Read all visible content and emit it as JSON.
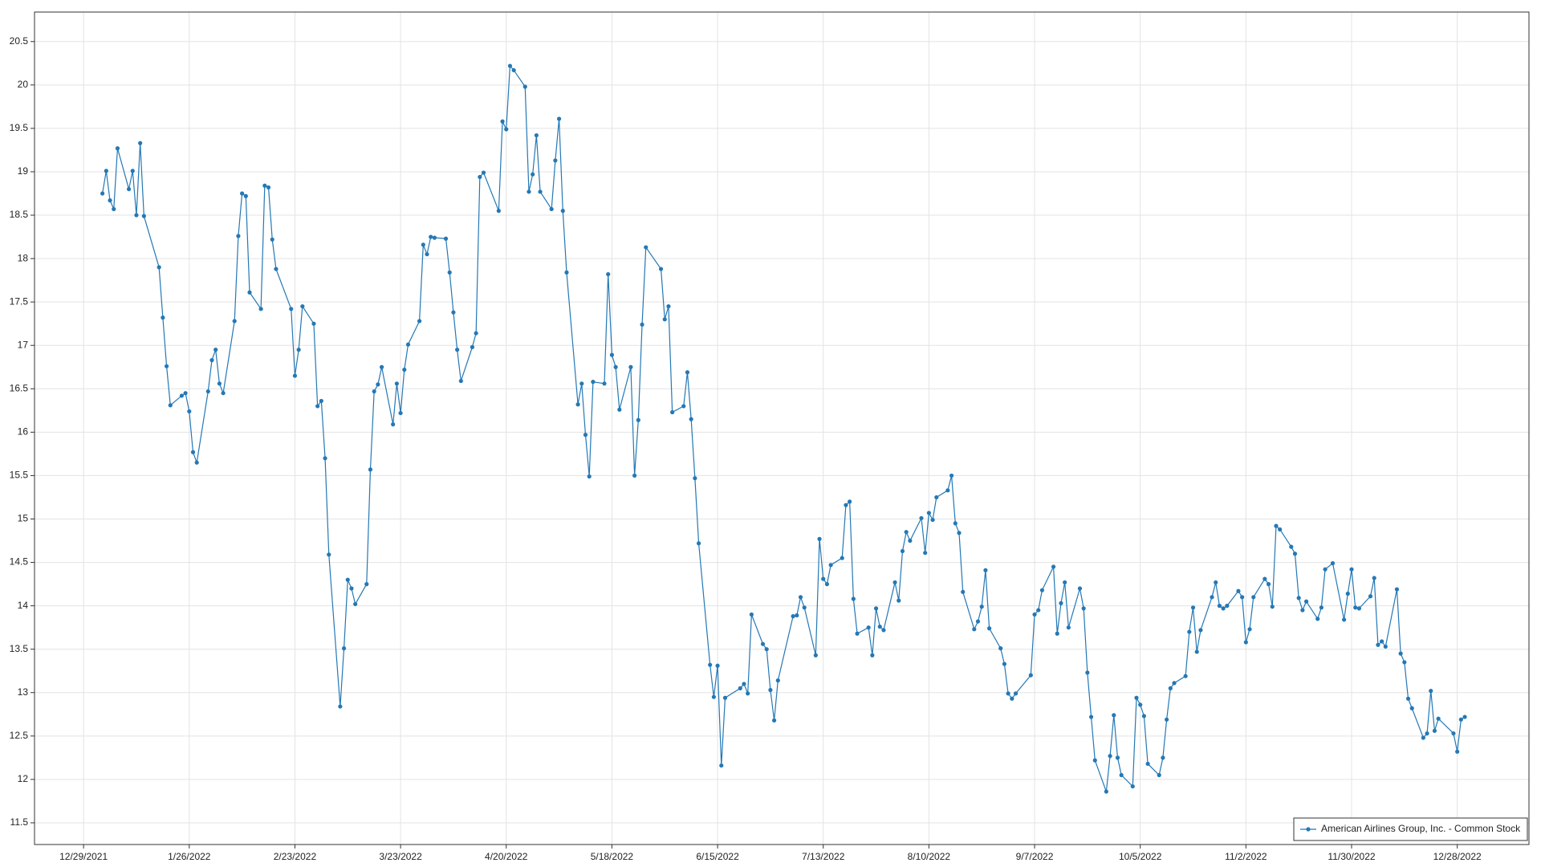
{
  "chart_data": {
    "type": "line",
    "x": [
      "2022-01-03",
      "2022-01-04",
      "2022-01-05",
      "2022-01-06",
      "2022-01-07",
      "2022-01-10",
      "2022-01-11",
      "2022-01-12",
      "2022-01-13",
      "2022-01-14",
      "2022-01-18",
      "2022-01-19",
      "2022-01-20",
      "2022-01-21",
      "2022-01-24",
      "2022-01-25",
      "2022-01-26",
      "2022-01-27",
      "2022-01-28",
      "2022-01-31",
      "2022-02-01",
      "2022-02-02",
      "2022-02-03",
      "2022-02-04",
      "2022-02-07",
      "2022-02-08",
      "2022-02-09",
      "2022-02-10",
      "2022-02-11",
      "2022-02-14",
      "2022-02-15",
      "2022-02-16",
      "2022-02-17",
      "2022-02-18",
      "2022-02-22",
      "2022-02-23",
      "2022-02-24",
      "2022-02-25",
      "2022-02-28",
      "2022-03-01",
      "2022-03-02",
      "2022-03-03",
      "2022-03-04",
      "2022-03-07",
      "2022-03-08",
      "2022-03-09",
      "2022-03-10",
      "2022-03-11",
      "2022-03-14",
      "2022-03-15",
      "2022-03-16",
      "2022-03-17",
      "2022-03-18",
      "2022-03-21",
      "2022-03-22",
      "2022-03-23",
      "2022-03-24",
      "2022-03-25",
      "2022-03-28",
      "2022-03-29",
      "2022-03-30",
      "2022-03-31",
      "2022-04-01",
      "2022-04-04",
      "2022-04-05",
      "2022-04-06",
      "2022-04-07",
      "2022-04-08",
      "2022-04-11",
      "2022-04-12",
      "2022-04-13",
      "2022-04-14",
      "2022-04-18",
      "2022-04-19",
      "2022-04-20",
      "2022-04-21",
      "2022-04-22",
      "2022-04-25",
      "2022-04-26",
      "2022-04-27",
      "2022-04-28",
      "2022-04-29",
      "2022-05-02",
      "2022-05-03",
      "2022-05-04",
      "2022-05-05",
      "2022-05-06",
      "2022-05-09",
      "2022-05-10",
      "2022-05-11",
      "2022-05-12",
      "2022-05-13",
      "2022-05-16",
      "2022-05-17",
      "2022-05-18",
      "2022-05-19",
      "2022-05-20",
      "2022-05-23",
      "2022-05-24",
      "2022-05-25",
      "2022-05-26",
      "2022-05-27",
      "2022-05-31",
      "2022-06-01",
      "2022-06-02",
      "2022-06-03",
      "2022-06-06",
      "2022-06-07",
      "2022-06-08",
      "2022-06-09",
      "2022-06-10",
      "2022-06-13",
      "2022-06-14",
      "2022-06-15",
      "2022-06-16",
      "2022-06-17",
      "2022-06-21",
      "2022-06-22",
      "2022-06-23",
      "2022-06-24",
      "2022-06-27",
      "2022-06-28",
      "2022-06-29",
      "2022-06-30",
      "2022-07-01",
      "2022-07-05",
      "2022-07-06",
      "2022-07-07",
      "2022-07-08",
      "2022-07-11",
      "2022-07-12",
      "2022-07-13",
      "2022-07-14",
      "2022-07-15",
      "2022-07-18",
      "2022-07-19",
      "2022-07-20",
      "2022-07-21",
      "2022-07-22",
      "2022-07-25",
      "2022-07-26",
      "2022-07-27",
      "2022-07-28",
      "2022-07-29",
      "2022-08-01",
      "2022-08-02",
      "2022-08-03",
      "2022-08-04",
      "2022-08-05",
      "2022-08-08",
      "2022-08-09",
      "2022-08-10",
      "2022-08-11",
      "2022-08-12",
      "2022-08-15",
      "2022-08-16",
      "2022-08-17",
      "2022-08-18",
      "2022-08-19",
      "2022-08-22",
      "2022-08-23",
      "2022-08-24",
      "2022-08-25",
      "2022-08-26",
      "2022-08-29",
      "2022-08-30",
      "2022-08-31",
      "2022-09-01",
      "2022-09-02",
      "2022-09-06",
      "2022-09-07",
      "2022-09-08",
      "2022-09-09",
      "2022-09-12",
      "2022-09-13",
      "2022-09-14",
      "2022-09-15",
      "2022-09-16",
      "2022-09-19",
      "2022-09-20",
      "2022-09-21",
      "2022-09-22",
      "2022-09-23",
      "2022-09-26",
      "2022-09-27",
      "2022-09-28",
      "2022-09-29",
      "2022-09-30",
      "2022-10-03",
      "2022-10-04",
      "2022-10-05",
      "2022-10-06",
      "2022-10-07",
      "2022-10-10",
      "2022-10-11",
      "2022-10-12",
      "2022-10-13",
      "2022-10-14",
      "2022-10-17",
      "2022-10-18",
      "2022-10-19",
      "2022-10-20",
      "2022-10-21",
      "2022-10-24",
      "2022-10-25",
      "2022-10-26",
      "2022-10-27",
      "2022-10-28",
      "2022-10-31",
      "2022-11-01",
      "2022-11-02",
      "2022-11-03",
      "2022-11-04",
      "2022-11-07",
      "2022-11-08",
      "2022-11-09",
      "2022-11-10",
      "2022-11-11",
      "2022-11-14",
      "2022-11-15",
      "2022-11-16",
      "2022-11-17",
      "2022-11-18",
      "2022-11-21",
      "2022-11-22",
      "2022-11-23",
      "2022-11-25",
      "2022-11-28",
      "2022-11-29",
      "2022-11-30",
      "2022-12-01",
      "2022-12-02",
      "2022-12-05",
      "2022-12-06",
      "2022-12-07",
      "2022-12-08",
      "2022-12-09",
      "2022-12-12",
      "2022-12-13",
      "2022-12-14",
      "2022-12-15",
      "2022-12-16",
      "2022-12-19",
      "2022-12-20",
      "2022-12-21",
      "2022-12-22",
      "2022-12-23",
      "2022-12-27",
      "2022-12-28",
      "2022-12-29",
      "2022-12-30"
    ],
    "series": [
      {
        "name": "American Airlines Group, Inc. - Common Stock",
        "color": "#2478b5",
        "values": [
          18.75,
          19.01,
          18.67,
          18.57,
          19.27,
          18.8,
          19.01,
          18.5,
          19.33,
          18.49,
          17.9,
          17.32,
          16.76,
          16.31,
          16.42,
          16.45,
          16.24,
          15.77,
          15.65,
          16.47,
          16.83,
          16.95,
          16.56,
          16.45,
          17.28,
          18.26,
          18.75,
          18.72,
          17.61,
          17.42,
          18.84,
          18.82,
          18.22,
          17.88,
          17.42,
          16.65,
          16.95,
          17.45,
          17.25,
          16.3,
          16.36,
          15.7,
          14.59,
          12.84,
          13.51,
          14.3,
          14.2,
          14.02,
          14.25,
          15.57,
          16.47,
          16.55,
          16.75,
          16.09,
          16.56,
          16.22,
          16.72,
          17.01,
          17.28,
          18.16,
          18.05,
          18.25,
          18.24,
          18.23,
          17.84,
          17.38,
          16.95,
          16.59,
          16.98,
          17.14,
          18.94,
          18.99,
          18.55,
          19.58,
          19.49,
          20.22,
          20.17,
          19.98,
          18.77,
          18.97,
          19.42,
          18.77,
          18.57,
          19.13,
          19.61,
          18.55,
          17.84,
          16.32,
          16.56,
          15.97,
          15.49,
          16.58,
          16.56,
          17.82,
          16.89,
          16.75,
          16.26,
          16.75,
          15.5,
          16.14,
          17.24,
          18.13,
          17.88,
          17.3,
          17.45,
          16.23,
          16.3,
          16.69,
          16.15,
          15.47,
          14.72,
          13.32,
          12.95,
          13.31,
          12.16,
          12.94,
          13.05,
          13.1,
          12.99,
          13.9,
          13.56,
          13.5,
          13.03,
          12.68,
          13.14,
          13.88,
          13.89,
          14.1,
          13.98,
          13.43,
          14.77,
          14.31,
          14.25,
          14.47,
          14.55,
          15.16,
          15.2,
          14.08,
          13.68,
          13.75,
          13.43,
          13.97,
          13.76,
          13.72,
          14.27,
          14.06,
          14.63,
          14.85,
          14.75,
          15.01,
          14.61,
          15.07,
          14.99,
          15.25,
          15.33,
          15.5,
          14.95,
          14.84,
          14.16,
          13.73,
          13.82,
          13.99,
          14.41,
          13.74,
          13.51,
          13.33,
          12.99,
          12.93,
          12.99,
          13.2,
          13.9,
          13.95,
          14.18,
          14.45,
          13.68,
          14.03,
          14.27,
          13.75,
          14.2,
          13.97,
          13.23,
          12.72,
          12.22,
          11.86,
          12.27,
          12.74,
          12.25,
          12.05,
          11.92,
          12.94,
          12.86,
          12.73,
          12.18,
          12.05,
          12.25,
          12.69,
          13.05,
          13.11,
          13.19,
          13.7,
          13.98,
          13.47,
          13.72,
          14.1,
          14.27,
          14.0,
          13.97,
          14.0,
          14.17,
          14.1,
          13.58,
          13.73,
          14.1,
          14.31,
          14.25,
          13.99,
          14.92,
          14.88,
          14.68,
          14.6,
          14.09,
          13.95,
          14.05,
          13.85,
          13.98,
          14.42,
          14.49,
          13.84,
          14.14,
          14.42,
          13.98,
          13.97,
          14.11,
          14.32,
          13.55,
          13.59,
          13.53,
          14.19,
          13.45,
          13.35,
          12.93,
          12.82,
          12.48,
          12.53,
          13.02,
          12.56,
          12.7,
          12.53,
          12.32,
          12.69,
          12.72
        ]
      }
    ],
    "xlim": [
      "2021-12-16",
      "2023-01-16"
    ],
    "xticks": [
      {
        "value": "2021-12-29",
        "label": "12/29/2021"
      },
      {
        "value": "2022-01-26",
        "label": "1/26/2022"
      },
      {
        "value": "2022-02-23",
        "label": "2/23/2022"
      },
      {
        "value": "2022-03-23",
        "label": "3/23/2022"
      },
      {
        "value": "2022-04-20",
        "label": "4/20/2022"
      },
      {
        "value": "2022-05-18",
        "label": "5/18/2022"
      },
      {
        "value": "2022-06-15",
        "label": "6/15/2022"
      },
      {
        "value": "2022-07-13",
        "label": "7/13/2022"
      },
      {
        "value": "2022-08-10",
        "label": "8/10/2022"
      },
      {
        "value": "2022-09-07",
        "label": "9/7/2022"
      },
      {
        "value": "2022-10-05",
        "label": "10/5/2022"
      },
      {
        "value": "2022-11-02",
        "label": "11/2/2022"
      },
      {
        "value": "2022-11-30",
        "label": "11/30/2022"
      },
      {
        "value": "2022-12-28",
        "label": "12/28/2022"
      }
    ],
    "ylim": [
      11.25,
      20.84
    ],
    "yticks": [
      11.5,
      12,
      12.5,
      13,
      13.5,
      14,
      14.5,
      15,
      15.5,
      16,
      16.5,
      17,
      17.5,
      18,
      18.5,
      19,
      19.5,
      20,
      20.5
    ],
    "grid": true,
    "legend": "lower right"
  }
}
